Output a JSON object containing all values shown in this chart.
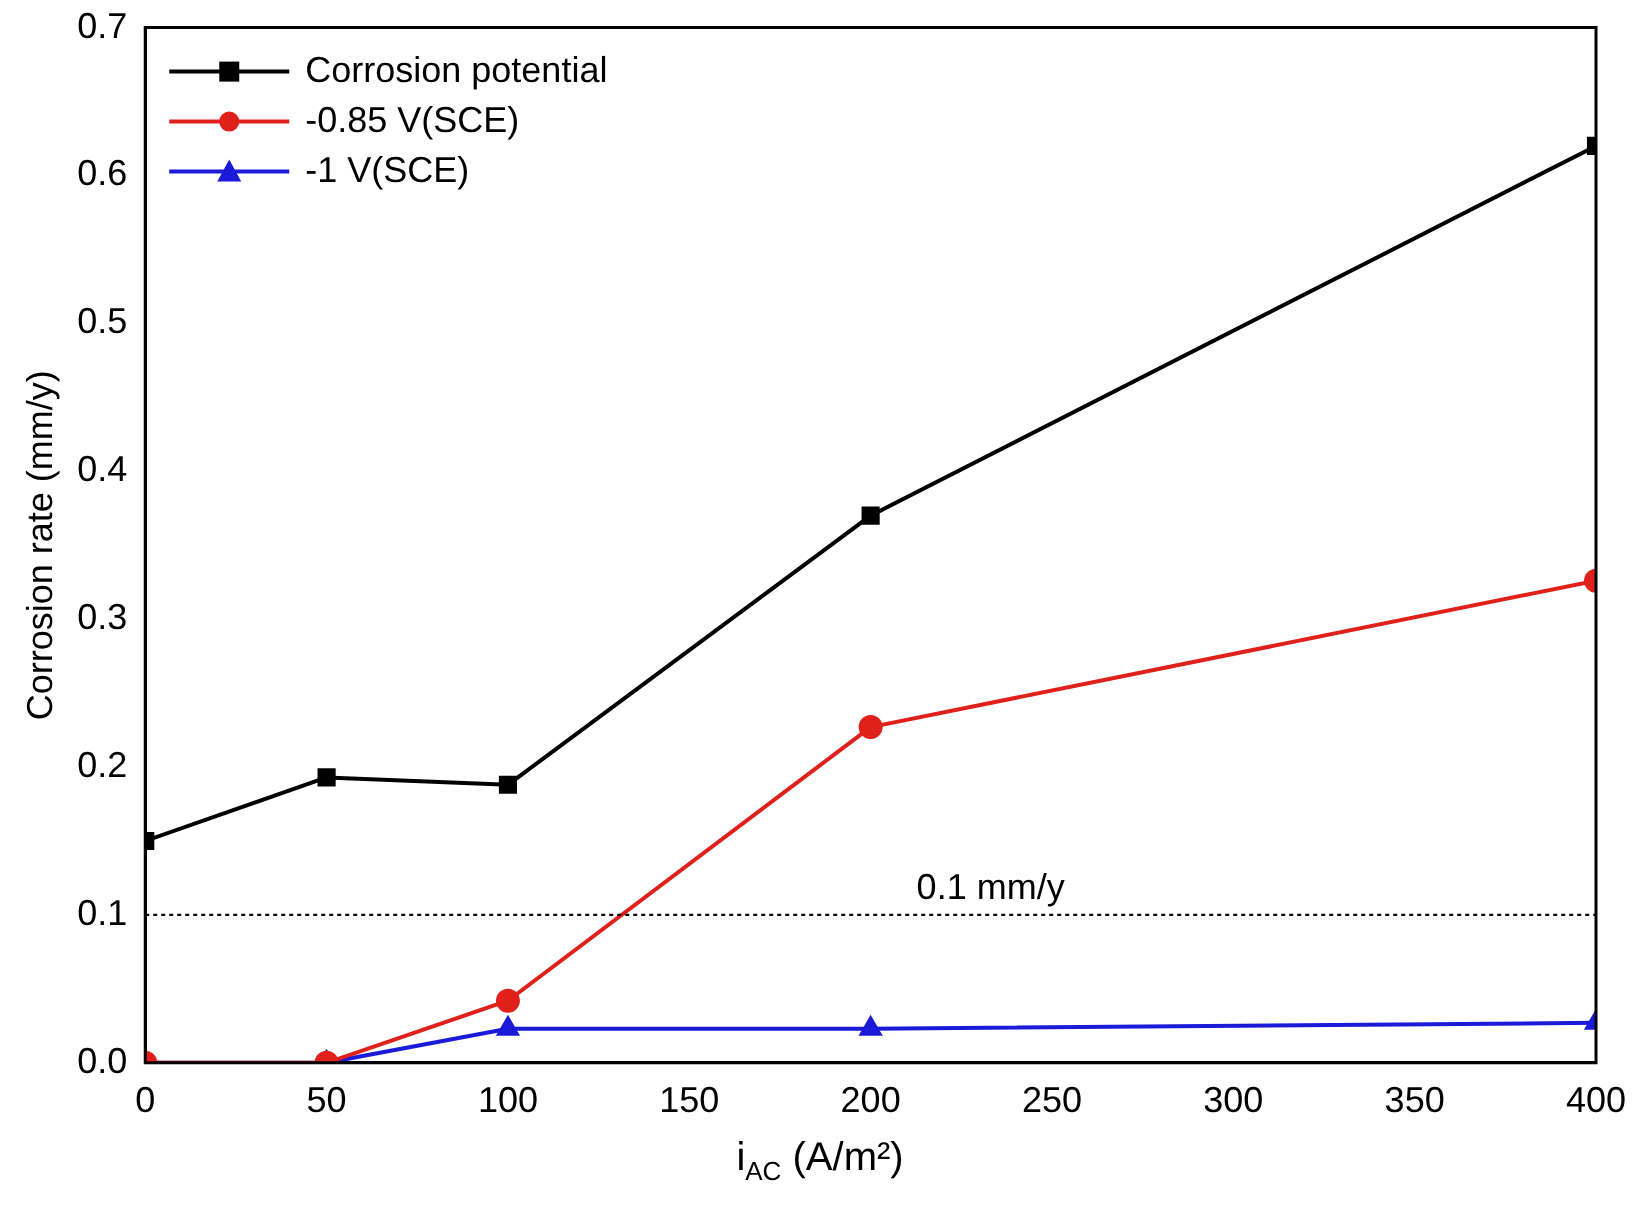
{
  "chart_data": {
    "type": "line",
    "xlabel": "i$_{AC}$ (A/m²)",
    "ylabel": "Corrosion rate (mm/y)",
    "x": [
      0,
      50,
      100,
      200,
      400
    ],
    "series": [
      {
        "name": "Corrosion potential",
        "color": "#000000",
        "marker": "square",
        "values": [
          0.15,
          0.193,
          0.188,
          0.37,
          0.62
        ]
      },
      {
        "name": "-0.85 V(SCE)",
        "color": "#e0201b",
        "marker": "circle",
        "values": [
          0,
          0,
          0.042,
          0.227,
          0.326
        ]
      },
      {
        "name": "-1 V(SCE)",
        "color": "#1a1ad8",
        "marker": "triangle",
        "values": [
          0,
          0,
          0.023,
          0.023,
          0.027
        ]
      }
    ],
    "xlim": [
      0,
      400
    ],
    "xticks": [
      0,
      50,
      100,
      150,
      200,
      250,
      300,
      350,
      400
    ],
    "ylim": [
      0,
      0.7
    ],
    "yticks": [
      {
        "value": 0,
        "label": "0.0"
      },
      0.1,
      0.2,
      0.3,
      0.4,
      0.5,
      0.6,
      0.7
    ],
    "ref_lines": [
      {
        "axis": "y",
        "value": 0.1,
        "label": "0.1 mm/y",
        "color": "#000000",
        "line_style": "dotted"
      }
    ],
    "grid": false,
    "legend": "top left"
  }
}
